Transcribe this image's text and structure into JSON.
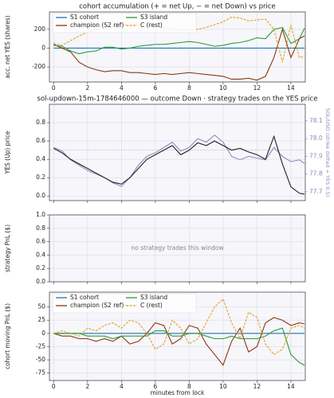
{
  "chart_data": [
    {
      "type": "line",
      "title": "cohort accumulation (+ = net Up, − = net Down) vs price",
      "ylabel": "acc. net YES (shares)",
      "x": [
        0,
        0.5,
        1,
        1.5,
        2,
        2.5,
        3,
        3.5,
        4,
        4.5,
        5,
        5.5,
        6,
        6.5,
        7,
        7.5,
        8,
        8.5,
        9,
        9.5,
        10,
        10.5,
        11,
        11.5,
        12,
        12.5,
        13,
        13.5,
        14,
        14.5,
        14.8
      ],
      "xlim": [
        -0.25,
        14.85
      ],
      "xticks": [
        0,
        2,
        4,
        6,
        8,
        10,
        12,
        14
      ],
      "show_xtick_labels": true,
      "ylim": [
        -360,
        385
      ],
      "yticks": [
        -200,
        0,
        200
      ],
      "grid": true,
      "legend": "upper left",
      "series": [
        {
          "name": "S1 cohort",
          "color": "#1f77b4",
          "dashed": false,
          "values": [
            0,
            0,
            0,
            0,
            0,
            0,
            0,
            0,
            0,
            0,
            0,
            0,
            0,
            0,
            0,
            0,
            0,
            0,
            0,
            0,
            0,
            0,
            0,
            0,
            0,
            0,
            0,
            0,
            0,
            0,
            0
          ]
        },
        {
          "name": "champion (S2 ref)",
          "color": "#8b3a12",
          "dashed": false,
          "values": [
            40,
            0,
            -40,
            -150,
            -200,
            -230,
            -250,
            -240,
            -240,
            -260,
            -260,
            -270,
            -280,
            -270,
            -280,
            -270,
            -260,
            -270,
            -280,
            -290,
            -300,
            -330,
            -330,
            -320,
            -340,
            -300,
            -100,
            200,
            -100,
            100,
            130
          ]
        },
        {
          "name": "S3 island",
          "color": "#2e9a3a",
          "dashed": false,
          "values": [
            30,
            20,
            -30,
            -60,
            -40,
            -30,
            10,
            10,
            -10,
            0,
            20,
            30,
            40,
            40,
            50,
            60,
            70,
            60,
            40,
            20,
            30,
            50,
            60,
            80,
            110,
            100,
            200,
            220,
            50,
            100,
            210
          ]
        },
        {
          "name": "C (rest)",
          "color": "#e0a420",
          "dashed": true,
          "values": [
            50,
            30,
            80,
            130,
            170,
            190,
            210,
            230,
            250,
            260,
            250,
            240,
            230,
            220,
            200,
            195,
            190,
            200,
            220,
            250,
            280,
            330,
            320,
            290,
            300,
            310,
            200,
            -150,
            250,
            -100,
            -90
          ]
        }
      ]
    },
    {
      "type": "line",
      "title": "sol-updown-15m-1784646000 — outcome Down · strategy trades on the YES price",
      "ylabel": "YES (Up) price",
      "y2label": "SOL/USD (strike dotted = YES 0.5)",
      "x": [
        0,
        0.5,
        1,
        1.5,
        2,
        2.5,
        3,
        3.5,
        4,
        4.5,
        5,
        5.5,
        6,
        6.5,
        7,
        7.5,
        8,
        8.5,
        9,
        9.5,
        10,
        10.5,
        11,
        11.5,
        12,
        12.5,
        13,
        13.5,
        14,
        14.5,
        14.8
      ],
      "xlim": [
        -0.25,
        14.85
      ],
      "xticks": [
        0,
        2,
        4,
        6,
        8,
        10,
        12,
        14
      ],
      "show_xtick_labels": false,
      "ylim": [
        -0.05,
        1.0
      ],
      "yticks": [
        {
          "value": 0,
          "label": "0.0"
        },
        0.2,
        0.4,
        0.6,
        0.8
      ],
      "y2lim": [
        77.65,
        78.194
      ],
      "y2ticks": [
        77.7,
        77.8,
        77.9,
        {
          "value": 78,
          "label": "78.0"
        },
        78.1
      ],
      "y2color": "#9a86c0",
      "reference_line": 0.5,
      "grid": true,
      "series": [
        {
          "color": "#9a86c0",
          "axis": "y2",
          "dashed": false,
          "values": [
            77.95,
            77.93,
            77.88,
            77.85,
            77.82,
            77.8,
            77.78,
            77.75,
            77.73,
            77.78,
            77.85,
            77.9,
            77.92,
            77.95,
            77.98,
            77.93,
            77.95,
            78.0,
            77.98,
            78.02,
            77.98,
            77.9,
            77.88,
            77.9,
            77.89,
            77.88,
            77.95,
            77.9,
            77.87,
            77.88,
            77.86
          ]
        },
        {
          "color": "#222222",
          "axis": "y",
          "dashed": false,
          "values": [
            0.52,
            0.47,
            0.4,
            0.35,
            0.3,
            0.25,
            0.2,
            0.15,
            0.13,
            0.2,
            0.3,
            0.4,
            0.45,
            0.5,
            0.55,
            0.45,
            0.5,
            0.58,
            0.55,
            0.6,
            0.55,
            0.5,
            0.52,
            0.48,
            0.45,
            0.4,
            0.65,
            0.35,
            0.1,
            0.03,
            0.02
          ]
        }
      ]
    },
    {
      "type": "line",
      "ylabel": "strategy PnL ($)",
      "annotation": "no strategy trades this window",
      "xlim": [
        -0.25,
        14.85
      ],
      "xticks": [
        0,
        2,
        4,
        6,
        8,
        10,
        12,
        14
      ],
      "show_xtick_labels": false,
      "ylim": [
        0,
        1
      ],
      "yticks": [
        {
          "value": 0,
          "label": "0.0"
        },
        0.2,
        0.4,
        0.6,
        0.8,
        {
          "value": 1,
          "label": "1.0"
        }
      ],
      "grid": true,
      "series": []
    },
    {
      "type": "line",
      "ylabel": "cohort moving PnL ($)",
      "xlabel": "minutes from lock",
      "x": [
        0,
        0.5,
        1,
        1.5,
        2,
        2.5,
        3,
        3.5,
        4,
        4.5,
        5,
        5.5,
        6,
        6.5,
        7,
        7.5,
        8,
        8.5,
        9,
        9.5,
        10,
        10.5,
        11,
        11.5,
        12,
        12.5,
        13,
        13.5,
        14,
        14.5,
        14.8
      ],
      "xlim": [
        -0.25,
        14.85
      ],
      "xticks": [
        0,
        2,
        4,
        6,
        8,
        10,
        12,
        14
      ],
      "show_xtick_labels": true,
      "ylim": [
        -89,
        78
      ],
      "yticks": [
        -75,
        -50,
        -25,
        0,
        25,
        50
      ],
      "grid": true,
      "legend": "upper left",
      "series": [
        {
          "name": "S1 cohort",
          "color": "#1f77b4",
          "dashed": false,
          "values": [
            0,
            0,
            0,
            0,
            0,
            0,
            0,
            0,
            0,
            0,
            0,
            0,
            0,
            0,
            0,
            0,
            0,
            0,
            0,
            0,
            0,
            0,
            0,
            0,
            0,
            0,
            0,
            0,
            0,
            0,
            0
          ]
        },
        {
          "name": "champion (S2 ref)",
          "color": "#8b3a12",
          "dashed": false,
          "values": [
            0,
            -5,
            -5,
            -10,
            -10,
            -15,
            -10,
            -15,
            -5,
            -20,
            -15,
            0,
            20,
            15,
            -20,
            -10,
            15,
            10,
            -20,
            -40,
            -60,
            -15,
            10,
            -35,
            -25,
            20,
            30,
            25,
            15,
            20,
            18
          ]
        },
        {
          "name": "S3 island",
          "color": "#2e9a3a",
          "dashed": false,
          "values": [
            0,
            0,
            0,
            0,
            -5,
            -5,
            -5,
            -10,
            -5,
            -5,
            -5,
            -5,
            5,
            5,
            -5,
            -5,
            0,
            0,
            -5,
            -10,
            -10,
            -5,
            -10,
            -10,
            -10,
            -5,
            5,
            10,
            -40,
            -55,
            -60
          ]
        },
        {
          "name": "C (rest)",
          "color": "#e0a420",
          "dashed": true,
          "values": [
            0,
            5,
            0,
            -5,
            10,
            5,
            15,
            20,
            10,
            25,
            20,
            0,
            -30,
            -20,
            25,
            10,
            -20,
            -10,
            20,
            50,
            65,
            20,
            -10,
            40,
            30,
            -20,
            -40,
            -30,
            10,
            15,
            10
          ]
        }
      ]
    }
  ]
}
